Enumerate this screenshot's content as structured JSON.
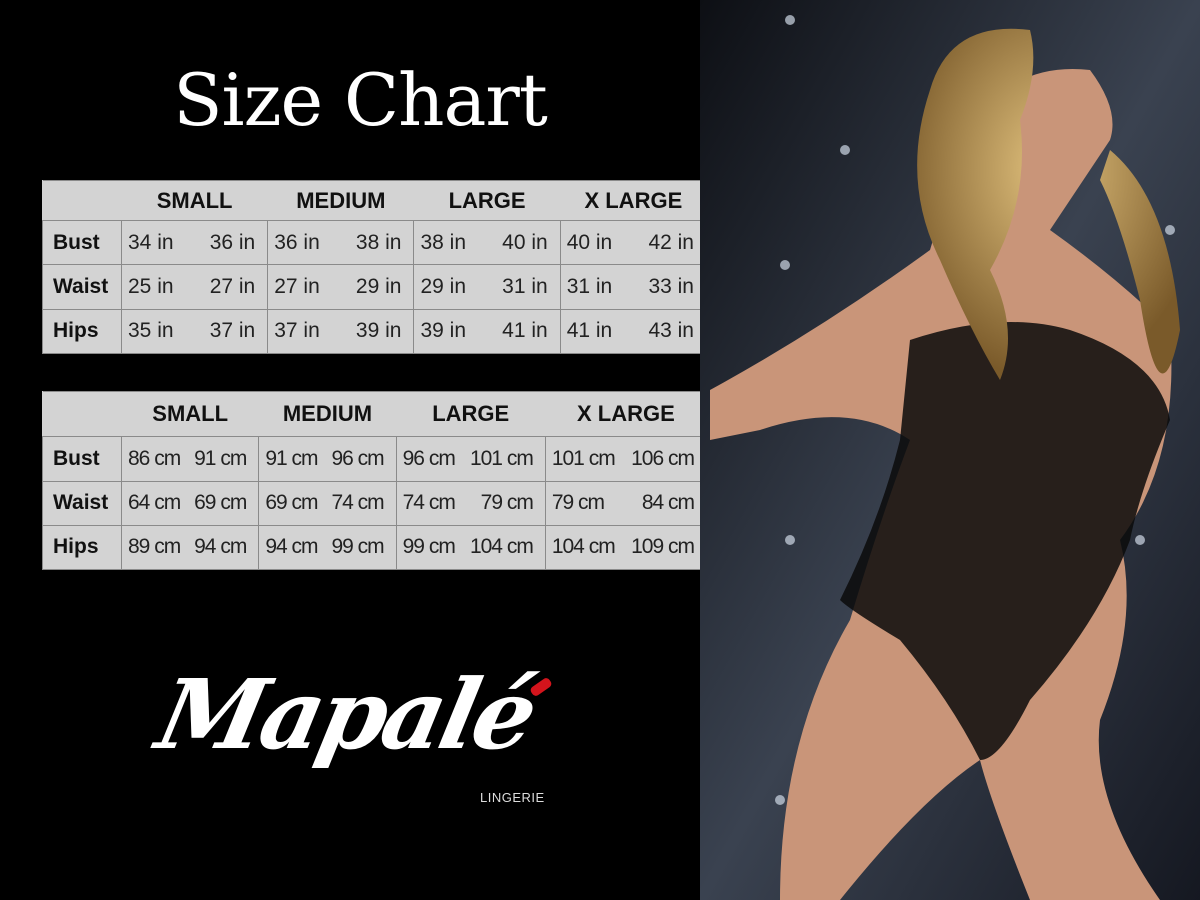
{
  "title": "Size Chart",
  "inches_table": {
    "sizes": [
      "SMALL",
      "MEDIUM",
      "LARGE",
      "X LARGE"
    ],
    "rows": [
      {
        "label": "Bust",
        "values": [
          "34 in",
          "36 in",
          "36 in",
          "38 in",
          "38 in",
          "40 in",
          "40 in",
          "42 in"
        ]
      },
      {
        "label": "Waist",
        "values": [
          "25 in",
          "27 in",
          "27 in",
          "29 in",
          "29 in",
          "31 in",
          "31 in",
          "33 in"
        ]
      },
      {
        "label": "Hips",
        "values": [
          "35 in",
          "37 in",
          "37 in",
          "39 in",
          "39 in",
          "41 in",
          "41 in",
          "43 in"
        ]
      }
    ]
  },
  "cm_table": {
    "sizes": [
      "SMALL",
      "MEDIUM",
      "LARGE",
      "X LARGE"
    ],
    "rows": [
      {
        "label": "Bust",
        "values": [
          "86 cm",
          "91 cm",
          "91 cm",
          "96 cm",
          "96 cm",
          "101 cm",
          "101 cm",
          "106 cm"
        ]
      },
      {
        "label": "Waist",
        "values": [
          "64 cm",
          "69 cm",
          "69 cm",
          "74 cm",
          "74 cm",
          "79  cm",
          "79 cm",
          "84 cm"
        ]
      },
      {
        "label": "Hips",
        "values": [
          "89 cm",
          "94 cm",
          "94 cm",
          "99 cm",
          "99 cm",
          "104 cm",
          "104 cm",
          "109 cm"
        ]
      }
    ]
  },
  "logo": {
    "name": "Mapalé",
    "subtitle": "LINGERIE",
    "accent_color": "#d4141c"
  },
  "colors": {
    "background": "#000000",
    "table_bg": "#d3d3d3",
    "text": "#222222"
  }
}
